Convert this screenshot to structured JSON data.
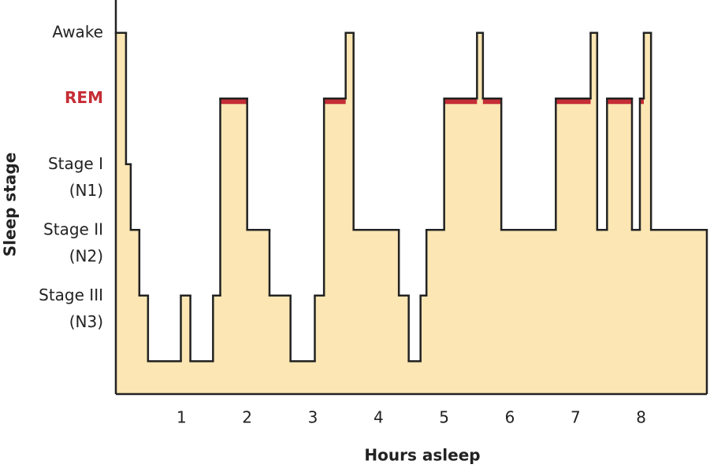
{
  "chart_data": {
    "type": "step-area",
    "x_label": "Hours asleep",
    "y_label": "Sleep stage",
    "step": "post",
    "x": [
      0,
      0.155,
      0.227,
      0.358,
      0.49,
      0.99,
      1.135,
      1.48,
      1.59,
      2.0,
      2.34,
      2.66,
      3.03,
      3.17,
      3.5,
      3.62,
      4.31,
      4.46,
      4.64,
      4.73,
      5.0,
      5.5,
      5.59,
      5.87,
      6.7,
      7.23,
      7.33,
      7.48,
      7.86,
      7.98,
      8.04,
      8.15
    ],
    "values": [
      5,
      3,
      2,
      1,
      0,
      1,
      0,
      1,
      4,
      2,
      1,
      0,
      1,
      4,
      5,
      2,
      1,
      0,
      1,
      2,
      4,
      5,
      4,
      2,
      4,
      5,
      2,
      4,
      2,
      4,
      5,
      2
    ],
    "color": "#fbe6b4",
    "line_color": "#222222",
    "xlim": [
      0,
      9
    ],
    "xticks": [
      1,
      2,
      3,
      4,
      5,
      6,
      7,
      8
    ],
    "ylim": [
      -0.5,
      5.5
    ],
    "yticks": [
      {
        "value": 5,
        "label": "Awake"
      },
      {
        "value": 4,
        "label": "REM",
        "color": "#c62d36"
      },
      {
        "value": 3,
        "label": "Stage I (N1)"
      },
      {
        "value": 2,
        "label": "Stage II (N2)"
      },
      {
        "value": 1,
        "label": "Stage III (N3)"
      }
    ]
  }
}
